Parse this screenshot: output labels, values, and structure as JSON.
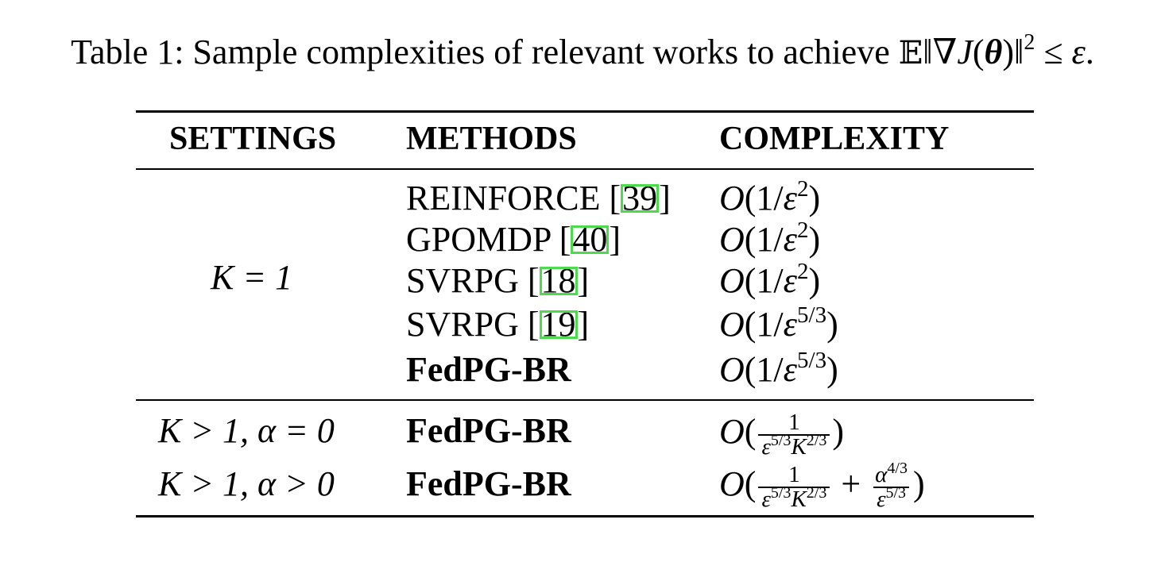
{
  "caption": {
    "prefix": "Table 1: Sample complexities of relevant works to achieve ",
    "expectation": "𝔼",
    "norm_open": "‖∇",
    "J": "J",
    "paren_open": "(",
    "theta": "θ",
    "paren_close": ")",
    "norm_close": "‖",
    "exponent": "2",
    "relation": " ≤ ",
    "epsilon": "ε",
    "period": "."
  },
  "table": {
    "headers": [
      "SETTINGS",
      "METHODS",
      "COMPLEXITY"
    ],
    "groups": [
      {
        "setting": "K = 1",
        "rows": [
          {
            "method": "REINFORCE [",
            "ref": "39",
            "close": "]",
            "complexity": "O(1/ε²)"
          },
          {
            "method": "GPOMDP [",
            "ref": "40",
            "close": "]",
            "complexity": "O(1/ε²)"
          },
          {
            "method": "SVRPG [",
            "ref": "18",
            "close": "]",
            "complexity": "O(1/ε²)"
          },
          {
            "method": "SVRPG [",
            "ref": "19",
            "close": "]",
            "complexity": "O(1/ε^{5/3})"
          },
          {
            "method": "FedPG-BR",
            "complexity": "O(1/ε^{5/3})"
          }
        ]
      },
      {
        "rows": [
          {
            "setting": "K > 1, α = 0",
            "method": "FedPG-BR",
            "complexity": "O(1/(ε^{5/3} K^{2/3}))"
          },
          {
            "setting": "K > 1, α > 0",
            "method": "FedPG-BR",
            "complexity": "O(1/(ε^{5/3} K^{2/3}) + α^{4/3}/ε^{5/3})"
          }
        ]
      }
    ]
  }
}
